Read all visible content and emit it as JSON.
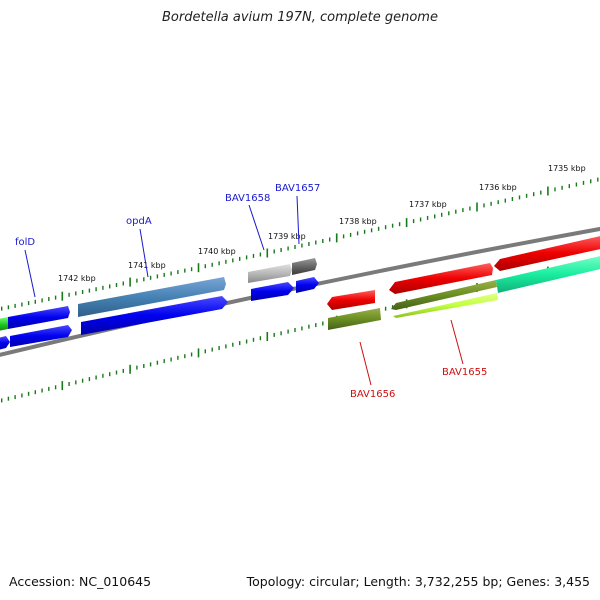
{
  "title": "Bordetella avium 197N, complete genome",
  "footer": {
    "accession": "Accession: NC_010645",
    "summary": "Topology: circular; Length: 3,732,255 bp; Genes: 3,455"
  },
  "ruler": {
    "labels": [
      "1742 kbp",
      "1741 kbp",
      "1740 kbp",
      "1739 kbp",
      "1738 kbp",
      "1737 kbp",
      "1736 kbp",
      "1735 kbp"
    ]
  },
  "gene_labels": {
    "folD": "folD",
    "opdA": "opdA",
    "bav1658": "BAV1658",
    "bav1657": "BAV1657",
    "bav1656": "BAV1656",
    "bav1655": "BAV1655"
  },
  "colors": {
    "backbone": "#7a7a7a",
    "tick": "#1a7a1a",
    "label_blue": "#1a1ad0",
    "label_red": "#cc1111"
  }
}
